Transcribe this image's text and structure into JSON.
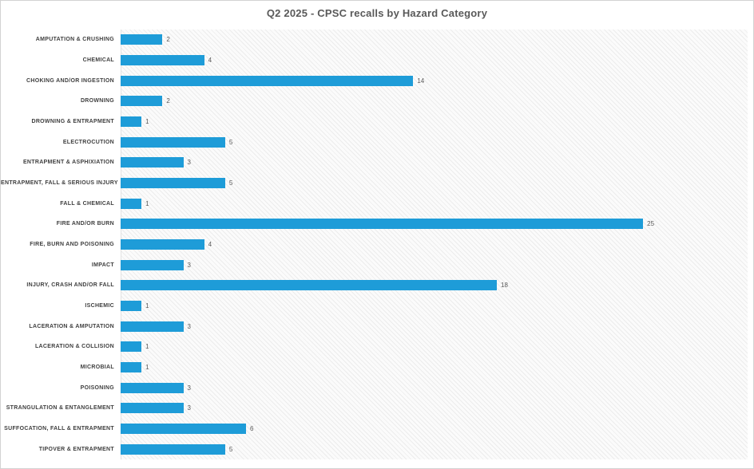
{
  "chart_data": {
    "type": "bar",
    "orientation": "horizontal",
    "title": "Q2 2025 - CPSC recalls by Hazard Category",
    "categories": [
      "AMPUTATION & CRUSHING",
      "CHEMICAL",
      "CHOKING AND/OR INGESTION",
      "DROWNING",
      "DROWNING & ENTRAPMENT",
      "ELECTROCUTION",
      "ENTRAPMENT & ASPHIXIATION",
      "ENTRAPMENT, FALL & SERIOUS INJURY",
      "FALL & CHEMICAL",
      "FIRE AND/OR BURN",
      "FIRE, BURN AND POISONING",
      "IMPACT",
      "INJURY, CRASH AND/OR FALL",
      "ISCHEMIC",
      "LACERATION & AMPUTATION",
      "LACERATION & COLLISION",
      "MICROBIAL",
      "POISONING",
      "STRANGULATION & ENTANGLEMENT",
      "SUFFOCATION, FALL & ENTRAPMENT",
      "TIPOVER & ENTRAPMENT"
    ],
    "values": [
      2,
      4,
      14,
      2,
      1,
      5,
      3,
      5,
      1,
      25,
      4,
      3,
      18,
      1,
      3,
      1,
      1,
      3,
      3,
      6,
      5
    ],
    "xlabel": "",
    "ylabel": "",
    "xlim": [
      0,
      30
    ],
    "grid": false,
    "legend": false,
    "value_labels_shown": true,
    "bar_color": "#1E9CD8",
    "title_color": "#595959",
    "label_color": "#3F3F3F",
    "value_color": "#595959"
  }
}
